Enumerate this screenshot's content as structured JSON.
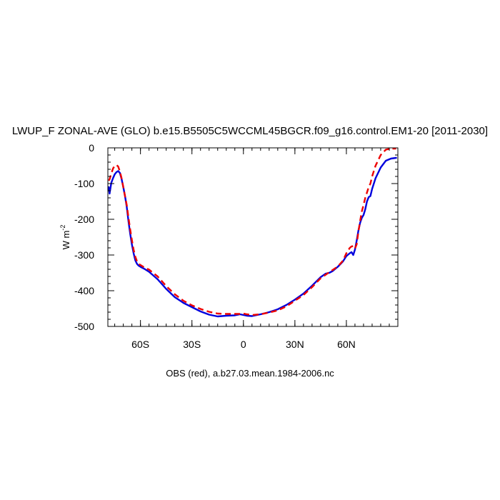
{
  "chart_data": {
    "type": "line",
    "title": "LWUP_F ZONAL-AVE (GLO) b.e15.B5505C5WCCML45BGCR.f09_g16.control.EM1-20 [2011-2030]",
    "xlabel": "OBS (red), a.b27.03.mean.1984-2006.nc",
    "ylabel_main": "W m",
    "ylabel_sup": "-2",
    "xlim": [
      -79,
      90
    ],
    "ylim": [
      -500,
      0
    ],
    "xticks": [
      {
        "value": -60,
        "label": "60S"
      },
      {
        "value": -30,
        "label": "30S"
      },
      {
        "value": 0,
        "label": "0"
      },
      {
        "value": 30,
        "label": "30N"
      },
      {
        "value": 60,
        "label": "60N"
      }
    ],
    "yticks": [
      {
        "value": 0,
        "label": "0"
      },
      {
        "value": -100,
        "label": "-100"
      },
      {
        "value": -200,
        "label": "-200"
      },
      {
        "value": -300,
        "label": "-300"
      },
      {
        "value": -400,
        "label": "-400"
      },
      {
        "value": -500,
        "label": "-500"
      }
    ],
    "series": [
      {
        "color": "#0000dd",
        "dash": "solid",
        "x": [
          -78.5,
          -78,
          -77,
          -76,
          -75,
          -74,
          -73,
          -72,
          -71,
          -70,
          -69,
          -68,
          -67,
          -66,
          -65,
          -64,
          -63,
          -62,
          -61,
          -60,
          -58,
          -55,
          -50,
          -45,
          -40,
          -35,
          -30,
          -25,
          -20,
          -15,
          -10,
          -5,
          -2,
          0,
          2,
          5,
          10,
          15,
          20,
          25,
          30,
          35,
          40,
          45,
          48,
          50,
          52,
          55,
          58,
          60,
          62,
          63,
          64,
          65,
          66,
          67,
          68,
          69,
          70,
          71,
          72,
          73,
          74,
          75,
          77,
          80,
          83,
          86,
          89
        ],
        "y": [
          -110,
          -128,
          -98,
          -85,
          -74,
          -68,
          -65,
          -70,
          -87,
          -110,
          -135,
          -165,
          -205,
          -240,
          -270,
          -295,
          -315,
          -325,
          -330,
          -333,
          -338,
          -347,
          -368,
          -395,
          -418,
          -434,
          -446,
          -458,
          -467,
          -472,
          -470,
          -469,
          -466,
          -468,
          -470,
          -471,
          -466,
          -460,
          -452,
          -440,
          -425,
          -408,
          -386,
          -362,
          -352,
          -350,
          -345,
          -333,
          -318,
          -303,
          -295,
          -292,
          -300,
          -285,
          -260,
          -232,
          -210,
          -196,
          -188,
          -172,
          -150,
          -138,
          -135,
          -115,
          -85,
          -55,
          -36,
          -30,
          -28
        ]
      },
      {
        "color": "#ee0000",
        "dash": "8,5",
        "x": [
          -78.5,
          -78,
          -77,
          -76,
          -75,
          -74,
          -73,
          -72,
          -71,
          -70,
          -69,
          -68,
          -67,
          -66,
          -65,
          -64,
          -63,
          -62,
          -61,
          -60,
          -58,
          -55,
          -50,
          -45,
          -40,
          -35,
          -30,
          -25,
          -20,
          -15,
          -10,
          -5,
          -2,
          0,
          2,
          5,
          10,
          15,
          20,
          25,
          30,
          35,
          40,
          45,
          48,
          50,
          52,
          55,
          58,
          60,
          62,
          63,
          64,
          65,
          66,
          67,
          68,
          69,
          70,
          71,
          72,
          73,
          74,
          75,
          77,
          80,
          83,
          86,
          89
        ],
        "y": [
          -92,
          -88,
          -72,
          -58,
          -50,
          -48,
          -52,
          -66,
          -85,
          -110,
          -135,
          -160,
          -195,
          -228,
          -258,
          -285,
          -305,
          -318,
          -325,
          -328,
          -334,
          -341,
          -360,
          -387,
          -410,
          -428,
          -441,
          -451,
          -459,
          -464,
          -465,
          -465,
          -465,
          -464,
          -466,
          -468,
          -466,
          -461,
          -455,
          -444,
          -428,
          -412,
          -390,
          -365,
          -355,
          -348,
          -342,
          -332,
          -316,
          -295,
          -280,
          -276,
          -275,
          -282,
          -270,
          -235,
          -205,
          -178,
          -160,
          -140,
          -125,
          -110,
          -100,
          -80,
          -50,
          -20,
          -5,
          -2,
          -2
        ]
      }
    ],
    "grid": false,
    "legend": "none"
  }
}
